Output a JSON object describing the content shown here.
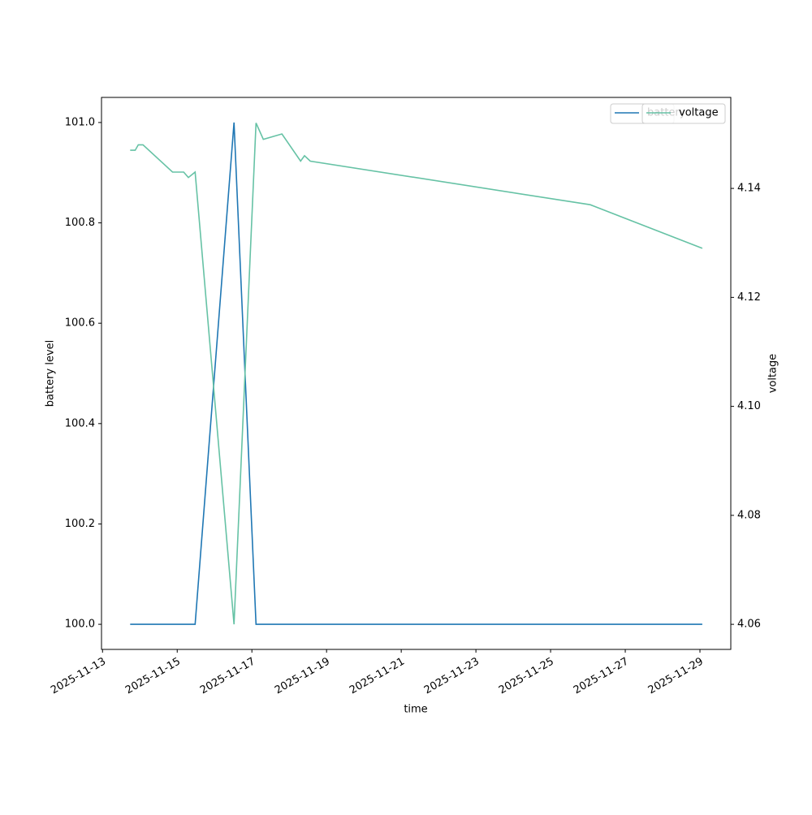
{
  "chart_data": {
    "type": "line",
    "x": [
      "2025-11-13T17:45",
      "2025-11-13T21:00",
      "2025-11-13T23:00",
      "2025-11-14T02:00",
      "2025-11-14T21:00",
      "2025-11-15T04:10",
      "2025-11-15T07:10",
      "2025-11-15T11:30",
      "2025-11-16T12:30",
      "2025-11-17T02:40",
      "2025-11-17T07:20",
      "2025-11-17T19:20",
      "2025-11-18T07:20",
      "2025-11-18T09:50",
      "2025-11-18T13:30",
      "2025-11-26T01:30",
      "2025-11-29T01:30"
    ],
    "series": [
      {
        "name": "battery",
        "color": "#1f77b4",
        "values": [
          100,
          100,
          100,
          100,
          100,
          100,
          100,
          100,
          101,
          100,
          100,
          100,
          100,
          100,
          100,
          100,
          100
        ]
      },
      {
        "name": "voltage",
        "color": "#66c2a5",
        "axis": "y2",
        "values": [
          4.147,
          4.147,
          4.148,
          4.148,
          4.143,
          4.143,
          4.142,
          4.143,
          4.06,
          4.152,
          4.149,
          4.15,
          4.145,
          4.146,
          4.145,
          4.137,
          4.129
        ]
      }
    ],
    "xlabel": "time",
    "ylabel": "battery level",
    "y2label": "voltage",
    "xlim": [
      "2025-11-12T23:20",
      "2025-11-29T19:50"
    ],
    "xticks": [
      "2025-11-13",
      "2025-11-15",
      "2025-11-17",
      "2025-11-19",
      "2025-11-21",
      "2025-11-23",
      "2025-11-25",
      "2025-11-27",
      "2025-11-29"
    ],
    "ylim": [
      99.95,
      101.05
    ],
    "yticks": [
      {
        "value": 100,
        "label": "100.0"
      },
      100.2,
      100.4,
      100.6,
      100.8,
      {
        "value": 101,
        "label": "101.0"
      }
    ],
    "y2lim": [
      4.0554,
      4.1567
    ],
    "y2ticks": [
      4.06,
      4.08,
      {
        "value": 4.1,
        "label": "4.10"
      },
      4.12,
      4.14
    ],
    "grid": false,
    "legend": "upper right"
  }
}
